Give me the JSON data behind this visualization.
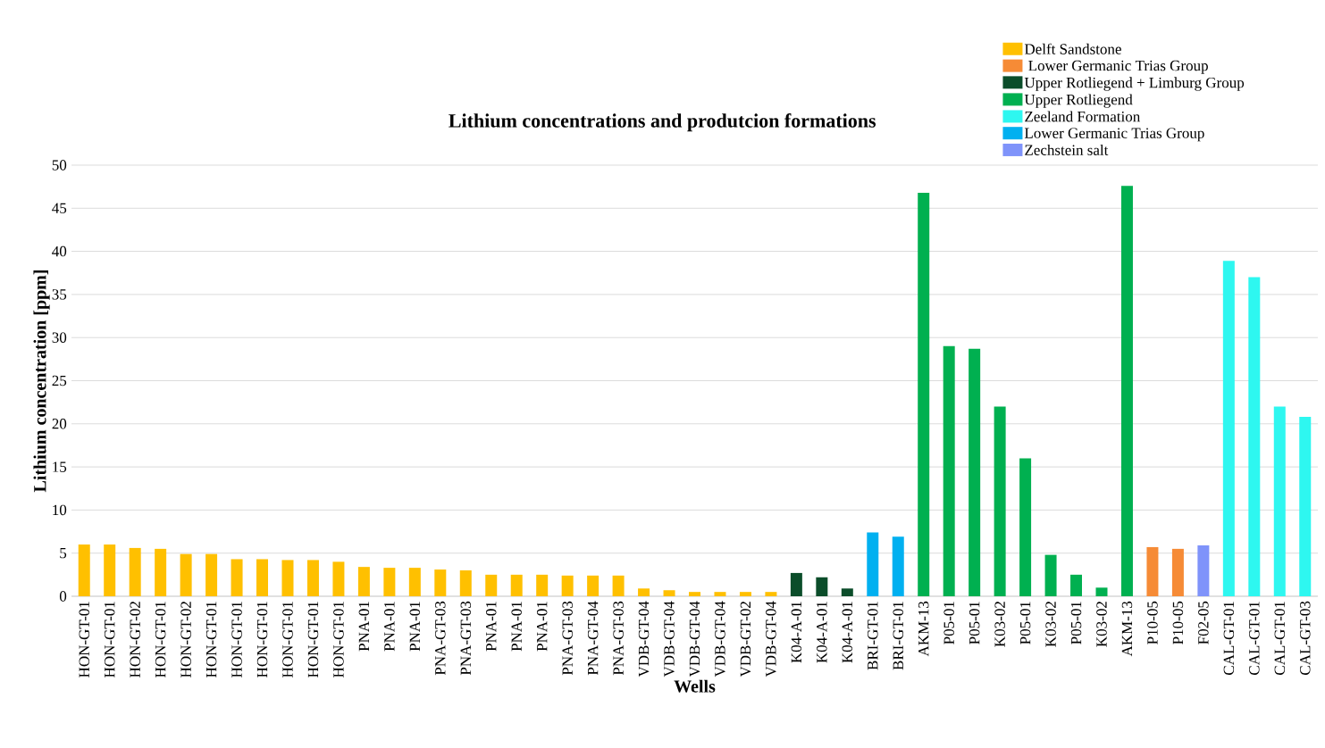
{
  "chart_data": {
    "type": "bar",
    "title": "Lithium concentrations and produtcion formations",
    "xlabel": "Wells",
    "ylabel": "Lithium concentration [ppm]",
    "categories": [
      "HON-GT-01",
      "HON-GT-01",
      "HON-GT-02",
      "HON-GT-01",
      "HON-GT-02",
      "HON-GT-01",
      "HON-GT-01",
      "HON-GT-01",
      "HON-GT-01",
      "HON-GT-01",
      "HON-GT-01",
      "PNA-01",
      "PNA-01",
      "PNA-01",
      "PNA-GT-03",
      "PNA-GT-03",
      "PNA-01",
      "PNA-01",
      "PNA-01",
      "PNA-GT-03",
      "PNA-GT-04",
      "PNA-GT-03",
      "VDB-GT-04",
      "VDB-GT-04",
      "VDB-GT-04",
      "VDB-GT-04",
      "VDB-GT-02",
      "VDB-GT-04",
      "K04-A-01",
      "K04-A-01",
      "K04-A-01",
      "BRI-GT-01",
      "BRI-GT-01",
      "AKM-13",
      "P05-01",
      "P05-01",
      "K03-02",
      "P05-01",
      "K03-02",
      "P05-01",
      "K03-02",
      "AKM-13",
      "P10-05",
      "P10-05",
      "F02-05",
      "CAL-GT-01",
      "CAL-GT-01",
      "CAL-GT-01",
      "CAL-GT-03"
    ],
    "series": [
      {
        "name": "Delft Sandstone",
        "color": "#ffc000",
        "values": [
          6.0,
          6.0,
          5.6,
          5.5,
          4.9,
          4.9,
          4.3,
          4.3,
          4.2,
          4.2,
          4.0,
          3.4,
          3.3,
          3.3,
          3.1,
          3.0,
          2.5,
          2.5,
          2.5,
          2.4,
          2.4,
          2.4,
          0.9,
          0.7,
          0.5,
          0.5,
          0.5,
          0.5,
          null,
          null,
          null,
          null,
          null,
          null,
          null,
          null,
          null,
          null,
          null,
          null,
          null,
          null,
          null,
          null,
          null,
          null,
          null,
          null,
          null
        ]
      },
      {
        "name": " Lower Germanic Trias Group",
        "color": "#f68b36",
        "values": [
          null,
          null,
          null,
          null,
          null,
          null,
          null,
          null,
          null,
          null,
          null,
          null,
          null,
          null,
          null,
          null,
          null,
          null,
          null,
          null,
          null,
          null,
          null,
          null,
          null,
          null,
          null,
          null,
          null,
          null,
          null,
          null,
          null,
          null,
          null,
          null,
          null,
          null,
          null,
          null,
          null,
          null,
          5.7,
          5.5,
          null,
          null,
          null,
          null,
          null
        ]
      },
      {
        "name": "Upper Rotliegend + Limburg Group",
        "color": "#0b4d2a",
        "values": [
          null,
          null,
          null,
          null,
          null,
          null,
          null,
          null,
          null,
          null,
          null,
          null,
          null,
          null,
          null,
          null,
          null,
          null,
          null,
          null,
          null,
          null,
          null,
          null,
          null,
          null,
          null,
          null,
          2.7,
          2.2,
          0.9,
          null,
          null,
          null,
          null,
          null,
          null,
          null,
          null,
          null,
          null,
          null,
          null,
          null,
          null,
          null,
          null,
          null,
          null
        ]
      },
      {
        "name": "Upper Rotliegend",
        "color": "#00b050",
        "values": [
          null,
          null,
          null,
          null,
          null,
          null,
          null,
          null,
          null,
          null,
          null,
          null,
          null,
          null,
          null,
          null,
          null,
          null,
          null,
          null,
          null,
          null,
          null,
          null,
          null,
          null,
          null,
          null,
          null,
          null,
          null,
          null,
          null,
          46.8,
          29.0,
          28.7,
          22.0,
          16.0,
          4.8,
          2.5,
          1.0,
          47.6,
          null,
          null,
          null,
          null,
          null,
          null,
          null
        ]
      },
      {
        "name": "Zeeland Formation",
        "color": "#2ef7f0",
        "values": [
          null,
          null,
          null,
          null,
          null,
          null,
          null,
          null,
          null,
          null,
          null,
          null,
          null,
          null,
          null,
          null,
          null,
          null,
          null,
          null,
          null,
          null,
          null,
          null,
          null,
          null,
          null,
          null,
          null,
          null,
          null,
          null,
          null,
          null,
          null,
          null,
          null,
          null,
          null,
          null,
          null,
          null,
          null,
          null,
          null,
          38.9,
          37.0,
          22.0,
          20.8
        ]
      },
      {
        "name": "Lower Germanic Trias Group",
        "color": "#00b0f0",
        "values": [
          null,
          null,
          null,
          null,
          null,
          null,
          null,
          null,
          null,
          null,
          null,
          null,
          null,
          null,
          null,
          null,
          null,
          null,
          null,
          null,
          null,
          null,
          null,
          null,
          null,
          null,
          null,
          null,
          null,
          null,
          null,
          7.4,
          6.9,
          null,
          null,
          null,
          null,
          null,
          null,
          null,
          null,
          null,
          null,
          null,
          null,
          null,
          null,
          null,
          null
        ]
      },
      {
        "name": "Zechstein salt",
        "color": "#7f93fa",
        "values": [
          null,
          null,
          null,
          null,
          null,
          null,
          null,
          null,
          null,
          null,
          null,
          null,
          null,
          null,
          null,
          null,
          null,
          null,
          null,
          null,
          null,
          null,
          null,
          null,
          null,
          null,
          null,
          null,
          null,
          null,
          null,
          null,
          null,
          null,
          null,
          null,
          null,
          null,
          null,
          null,
          null,
          null,
          null,
          null,
          5.9,
          null,
          null,
          null,
          null
        ]
      }
    ],
    "ylim": [
      0,
      50
    ],
    "yticks": [
      0,
      5,
      10,
      15,
      20,
      25,
      30,
      35,
      40,
      45,
      50
    ],
    "grid": "y",
    "legend": "top right"
  }
}
